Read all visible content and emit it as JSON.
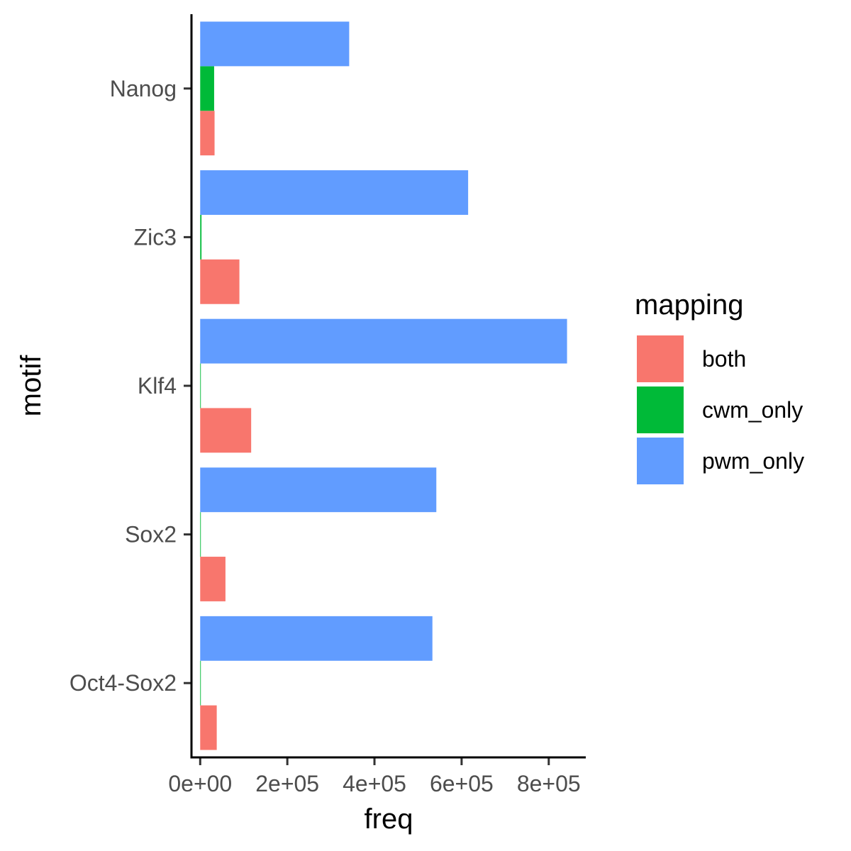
{
  "chart_data": {
    "type": "bar",
    "orientation": "horizontal",
    "xlabel": "freq",
    "ylabel": "motif",
    "categories": [
      "Nanog",
      "Zic3",
      "Klf4",
      "Sox2",
      "Oct4-Sox2"
    ],
    "xlim": [
      -20000,
      885000
    ],
    "x_ticks": [
      0,
      200000,
      400000,
      600000,
      800000
    ],
    "x_tick_labels": [
      "0e+00",
      "2e+05",
      "4e+05",
      "6e+05",
      "8e+05"
    ],
    "grid": false,
    "legend": {
      "title": "mapping",
      "position": "right",
      "entries": [
        "both",
        "cwm_only",
        "pwm_only"
      ]
    },
    "series": [
      {
        "name": "both",
        "color": "#F8766D",
        "values": [
          33000,
          90000,
          117000,
          58000,
          38000
        ]
      },
      {
        "name": "cwm_only",
        "color": "#00BA38",
        "values": [
          32000,
          3000,
          1500,
          1500,
          1500
        ]
      },
      {
        "name": "pwm_only",
        "color": "#619CFF",
        "values": [
          342000,
          615000,
          842000,
          542000,
          533000
        ]
      }
    ]
  }
}
